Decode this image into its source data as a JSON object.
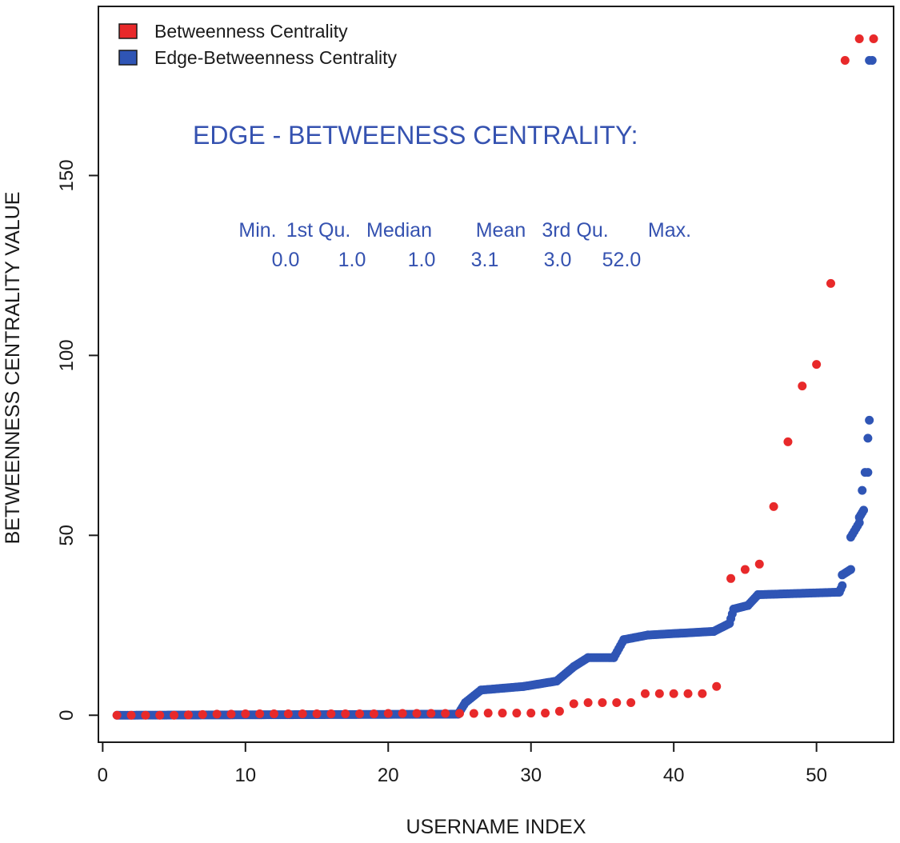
{
  "chart_data": {
    "type": "scatter",
    "title": "",
    "xlabel": "USERNAME INDEX",
    "ylabel": "BETWEENNESS CENTRALITY VALUE",
    "xlim": [
      -0.3,
      55.4
    ],
    "ylim": [
      -7.5,
      197
    ],
    "xticks": [
      0,
      10,
      20,
      30,
      40,
      50
    ],
    "yticks": [
      0,
      50,
      100,
      150
    ],
    "legend_position": "top-left",
    "legend": [
      {
        "label": "Betweenness Centrality",
        "color": "#e8292a"
      },
      {
        "label": "Edge-Betweenness Centrality",
        "color": "#2f55b5"
      }
    ],
    "annotation": {
      "color": "#3552b0",
      "title": "EDGE - BETWEENESS CENTRALITY:",
      "headers": [
        "Min.",
        "1st Qu.",
        "Median",
        "Mean",
        "3rd Qu.",
        "Max."
      ],
      "values": [
        "0.0",
        "1.0",
        "1.0",
        "3.1",
        "3.0",
        "52.0"
      ]
    },
    "series": [
      {
        "name": "Betweenness Centrality",
        "color": "#e8292a",
        "x": [
          1,
          2,
          3,
          4,
          5,
          6,
          7,
          8,
          9,
          10,
          11,
          12,
          13,
          14,
          15,
          16,
          17,
          18,
          19,
          20,
          21,
          22,
          23,
          24,
          25,
          26,
          27,
          28,
          29,
          30,
          31,
          32,
          33,
          34,
          35,
          36,
          37,
          38,
          39,
          40,
          41,
          42,
          43,
          44,
          45,
          46,
          47,
          48,
          49,
          50,
          51,
          52,
          53,
          54
        ],
        "y": [
          0,
          0,
          0,
          0,
          0,
          0.1,
          0.2,
          0.3,
          0.3,
          0.4,
          0.4,
          0.4,
          0.4,
          0.4,
          0.4,
          0.4,
          0.4,
          0.4,
          0.4,
          0.5,
          0.5,
          0.5,
          0.5,
          0.5,
          0.5,
          0.5,
          0.6,
          0.6,
          0.6,
          0.6,
          0.6,
          1.1,
          3.2,
          3.5,
          3.5,
          3.5,
          3.5,
          6.0,
          6.0,
          6.0,
          6.0,
          6.0,
          8.0,
          38.0,
          40.5,
          42.0,
          58.0,
          76.0,
          91.5,
          97.5,
          120.0,
          182.0,
          188.0,
          188.0
        ]
      },
      {
        "name": "Edge-Betweenness Centrality",
        "color": "#2f55b5",
        "segments": [
          {
            "x0": 1.0,
            "x1": 24.9,
            "y0": 0,
            "y1": 0.3
          },
          {
            "x0": 24.9,
            "x1": 25.4,
            "y0": 0.3,
            "y1": 3.5
          },
          {
            "x0": 25.4,
            "x1": 26.5,
            "y0": 3.5,
            "y1": 7.0
          },
          {
            "x0": 26.5,
            "x1": 29.5,
            "y0": 7.0,
            "y1": 8.0
          },
          {
            "x0": 29.5,
            "x1": 31.8,
            "y0": 8.0,
            "y1": 9.5
          },
          {
            "x0": 31.8,
            "x1": 33.0,
            "y0": 9.5,
            "y1": 13.5
          },
          {
            "x0": 33.0,
            "x1": 34.0,
            "y0": 13.5,
            "y1": 16.0
          },
          {
            "x0": 34.0,
            "x1": 35.8,
            "y0": 16.0,
            "y1": 16.0
          },
          {
            "x0": 35.8,
            "x1": 36.5,
            "y0": 16.0,
            "y1": 21.0
          },
          {
            "x0": 36.5,
            "x1": 38.2,
            "y0": 21.0,
            "y1": 22.3
          },
          {
            "x0": 38.2,
            "x1": 42.8,
            "y0": 22.3,
            "y1": 23.3
          },
          {
            "x0": 42.8,
            "x1": 43.9,
            "y0": 23.3,
            "y1": 25.5
          },
          {
            "x0": 43.9,
            "x1": 44.2,
            "y0": 25.5,
            "y1": 29.5
          },
          {
            "x0": 44.2,
            "x1": 45.2,
            "y0": 29.5,
            "y1": 30.5
          },
          {
            "x0": 45.2,
            "x1": 45.9,
            "y0": 30.5,
            "y1": 33.5
          },
          {
            "x0": 45.9,
            "x1": 51.6,
            "y0": 33.5,
            "y1": 34.2
          },
          {
            "x0": 51.6,
            "x1": 51.8,
            "y0": 34.2,
            "y1": 36.0
          },
          {
            "x0": 51.8,
            "x1": 52.4,
            "y0": 39.0,
            "y1": 40.5
          },
          {
            "x0": 52.4,
            "x1": 53.0,
            "y0": 49.5,
            "y1": 53.5
          },
          {
            "x0": 53.0,
            "x1": 53.3,
            "y0": 55.0,
            "y1": 57.0
          }
        ],
        "points": [
          {
            "x": 53.2,
            "y": 62.5
          },
          {
            "x": 53.4,
            "y": 67.5
          },
          {
            "x": 53.6,
            "y": 67.5
          },
          {
            "x": 53.6,
            "y": 77.0
          },
          {
            "x": 53.7,
            "y": 82.0
          },
          {
            "x": 53.7,
            "y": 182.0
          },
          {
            "x": 53.9,
            "y": 182.0
          }
        ]
      }
    ]
  }
}
